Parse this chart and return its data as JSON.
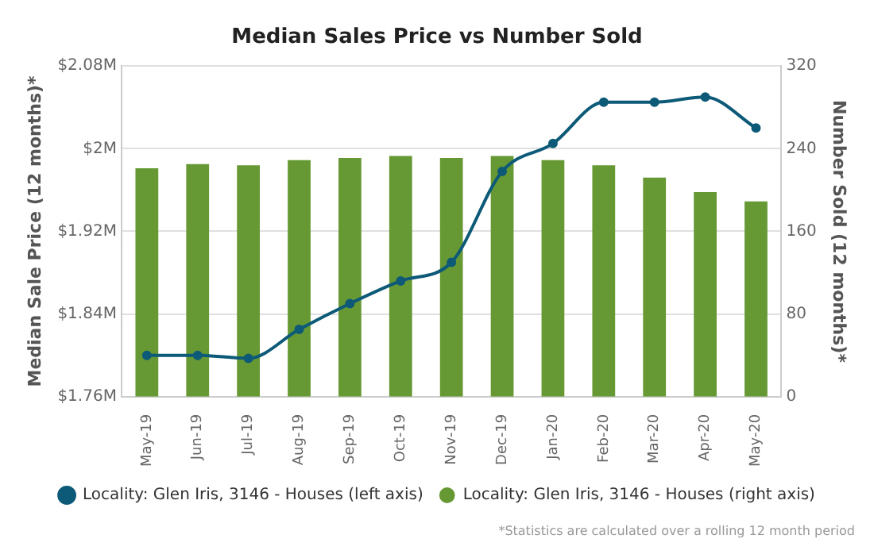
{
  "chart_data": {
    "type": "bar",
    "title": "Median Sales Price vs Number Sold",
    "ylabel": "Median Sale Price (12 months)*",
    "y2label": "Number Sold (12 months)*",
    "categories": [
      "May-19",
      "Jun-19",
      "Jul-19",
      "Aug-19",
      "Sep-19",
      "Oct-19",
      "Nov-19",
      "Dec-19",
      "Jan-20",
      "Feb-20",
      "Mar-20",
      "Apr-20",
      "May-20"
    ],
    "series": [
      {
        "name": "Locality: Glen Iris, 3146 - Houses (left axis)",
        "type": "line",
        "color": "#0d5a78",
        "axis": "y",
        "values": [
          1.8,
          1.8,
          1.797,
          1.825,
          1.85,
          1.872,
          1.89,
          1.978,
          2.005,
          2.045,
          2.045,
          2.05,
          2.02
        ]
      },
      {
        "name": "Locality: Glen Iris, 3146 - Houses (right axis)",
        "color": "#669933",
        "axis": "y2",
        "values": [
          221,
          225,
          224,
          229,
          231,
          233,
          231,
          233,
          229,
          224,
          212,
          198,
          189
        ]
      }
    ],
    "ylim": [
      1.76,
      2.08
    ],
    "yticks": [
      {
        "value": 1.76,
        "label": "$1.76M"
      },
      {
        "value": 1.84,
        "label": "$1.84M"
      },
      {
        "value": 1.92,
        "label": "$1.92M"
      },
      {
        "value": 2.0,
        "label": "$2M"
      },
      {
        "value": 2.08,
        "label": "$2.08M"
      }
    ],
    "y2lim": [
      0,
      320
    ],
    "y2ticks": [
      0,
      80,
      160,
      240,
      320
    ],
    "grid": "y",
    "legend": "bottom",
    "marker": "circle",
    "annotations": [
      "*Statistics are calculated over a rolling 12 month period"
    ]
  }
}
